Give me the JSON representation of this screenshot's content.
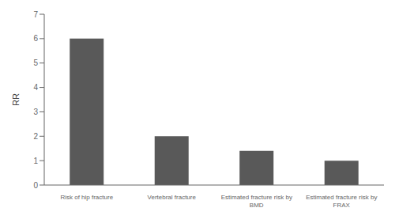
{
  "chart_data": {
    "type": "bar",
    "categories": [
      "Risk of hip fracture",
      "Vertebral fracture",
      "Estimated fracture risk by\nBMD",
      "Estimated fracture risk by\nFRAX"
    ],
    "values": [
      6.0,
      2.0,
      1.4,
      1.0
    ],
    "color": "#595959",
    "ylabel": "RR",
    "ylim": [
      0,
      7
    ],
    "yticks": [
      0,
      1,
      2,
      3,
      4,
      5,
      6,
      7
    ],
    "grid": false
  }
}
